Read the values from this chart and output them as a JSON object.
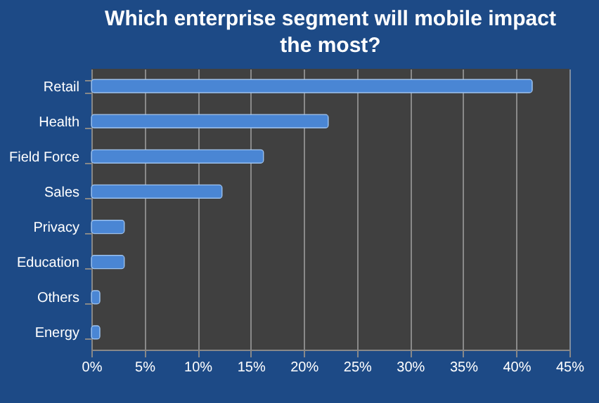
{
  "chart_data": {
    "type": "bar",
    "orientation": "horizontal",
    "title": "Which enterprise segment will mobile impact the most?",
    "categories": [
      "Retail",
      "Health",
      "Field Force",
      "Sales",
      "Privacy",
      "Education",
      "Others",
      "Energy"
    ],
    "values": [
      41.5,
      22.3,
      16.2,
      12.3,
      3.1,
      3.1,
      0.8,
      0.8
    ],
    "color": "#4a86d4",
    "xlim": [
      0,
      45
    ],
    "xticks": [
      {
        "value": 0,
        "label": "0%"
      },
      {
        "value": 5,
        "label": "5%"
      },
      {
        "value": 10,
        "label": "10%"
      },
      {
        "value": 15,
        "label": "15%"
      },
      {
        "value": 20,
        "label": "20%"
      },
      {
        "value": 25,
        "label": "25%"
      },
      {
        "value": 30,
        "label": "30%"
      },
      {
        "value": 35,
        "label": "35%"
      },
      {
        "value": 40,
        "label": "40%"
      },
      {
        "value": 45,
        "label": "45%"
      }
    ],
    "grid": "x"
  }
}
